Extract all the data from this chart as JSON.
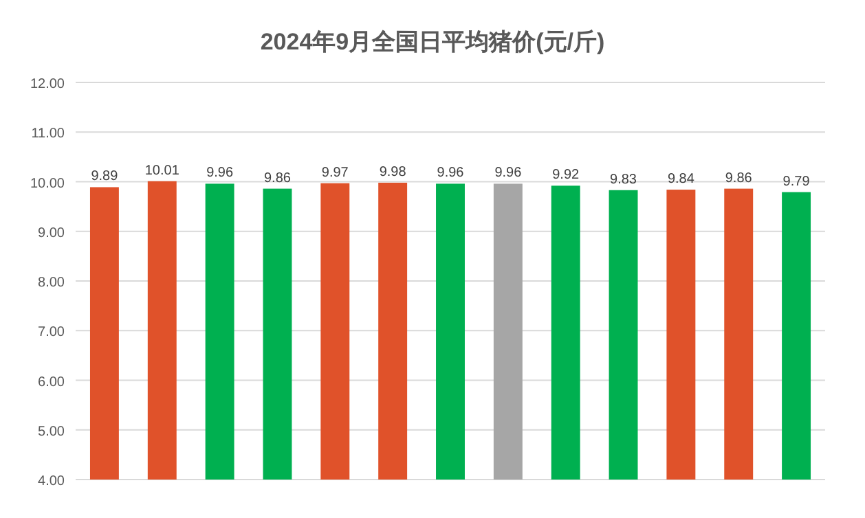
{
  "chart_data": {
    "type": "bar",
    "title": "2024年9月全国日平均猪价(元/斤)",
    "categories": [
      null,
      null,
      null,
      null,
      null,
      null,
      null,
      null,
      null,
      null,
      null,
      null,
      null
    ],
    "values": [
      9.89,
      10.01,
      9.96,
      9.86,
      9.97,
      9.98,
      9.96,
      9.96,
      9.92,
      9.83,
      9.84,
      9.86,
      9.79
    ],
    "colors": [
      "#e0522a",
      "#e0522a",
      "#00b050",
      "#00b050",
      "#e0522a",
      "#e0522a",
      "#00b050",
      "#a6a6a6",
      "#00b050",
      "#00b050",
      "#e0522a",
      "#e0522a",
      "#00b050"
    ],
    "ylim": [
      4,
      12
    ],
    "yticks": [
      {
        "value": 4,
        "label": "4.00"
      },
      {
        "value": 5,
        "label": "5.00"
      },
      {
        "value": 6,
        "label": "6.00"
      },
      {
        "value": 7,
        "label": "7.00"
      },
      {
        "value": 8,
        "label": "8.00"
      },
      {
        "value": 9,
        "label": "9.00"
      },
      {
        "value": 10,
        "label": "10.00"
      },
      {
        "value": 11,
        "label": "11.00"
      },
      {
        "value": 12,
        "label": "12.00"
      }
    ],
    "grid": "y",
    "data_labels": true
  }
}
